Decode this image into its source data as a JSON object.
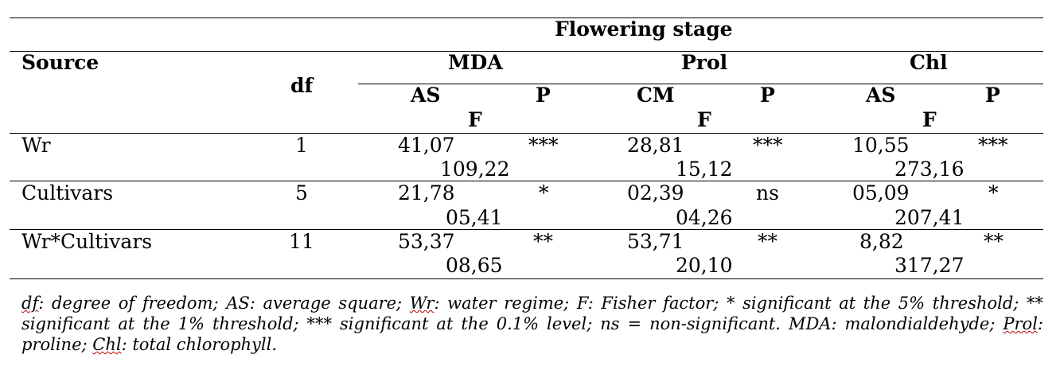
{
  "table": {
    "header": {
      "stage": "Flowering stage",
      "source": "Source",
      "df": "df",
      "groups": [
        "MDA",
        "Prol",
        "Chl"
      ],
      "sub": [
        "AS",
        "P",
        "CM",
        "P",
        "AS",
        "P"
      ],
      "f": [
        "F",
        "F",
        "F"
      ]
    },
    "rows": [
      {
        "source": "Wr",
        "df": "1",
        "mda": {
          "as": "41,07",
          "p": "***",
          "f": "109,22"
        },
        "prol": {
          "cm": "28,81",
          "p": "***",
          "f": "15,12"
        },
        "chl": {
          "as": "10,55",
          "p": "***",
          "f": "273,16"
        }
      },
      {
        "source": "Cultivars",
        "df": "5",
        "mda": {
          "as": "21,78",
          "p": "*",
          "f": "05,41"
        },
        "prol": {
          "cm": "02,39",
          "p": "ns",
          "f": "04,26"
        },
        "chl": {
          "as": "05,09",
          "p": "*",
          "f": "207,41"
        }
      },
      {
        "source": "Wr*Cultivars",
        "df": "11",
        "mda": {
          "as": "53,37",
          "p": "**",
          "f": "08,65"
        },
        "prol": {
          "cm": "53,71",
          "p": "**",
          "f": "20,10"
        },
        "chl": {
          "as": "8,82",
          "p": "**",
          "f": "317,27"
        }
      }
    ]
  },
  "footnote": {
    "df": "df",
    "t1": ": degree of freedom; AS: average square; ",
    "wr": "Wr",
    "t2": ": water regime; F: Fisher factor; * significant at the 5% threshold; ** significant at the 1% threshold; *** significant at the 0.1% level; ns = non-significant. MDA: malondialdehyde; ",
    "prol": "Prol",
    "t3": ": proline; ",
    "chl": "Chl",
    "t4": ": total chlorophyll."
  }
}
